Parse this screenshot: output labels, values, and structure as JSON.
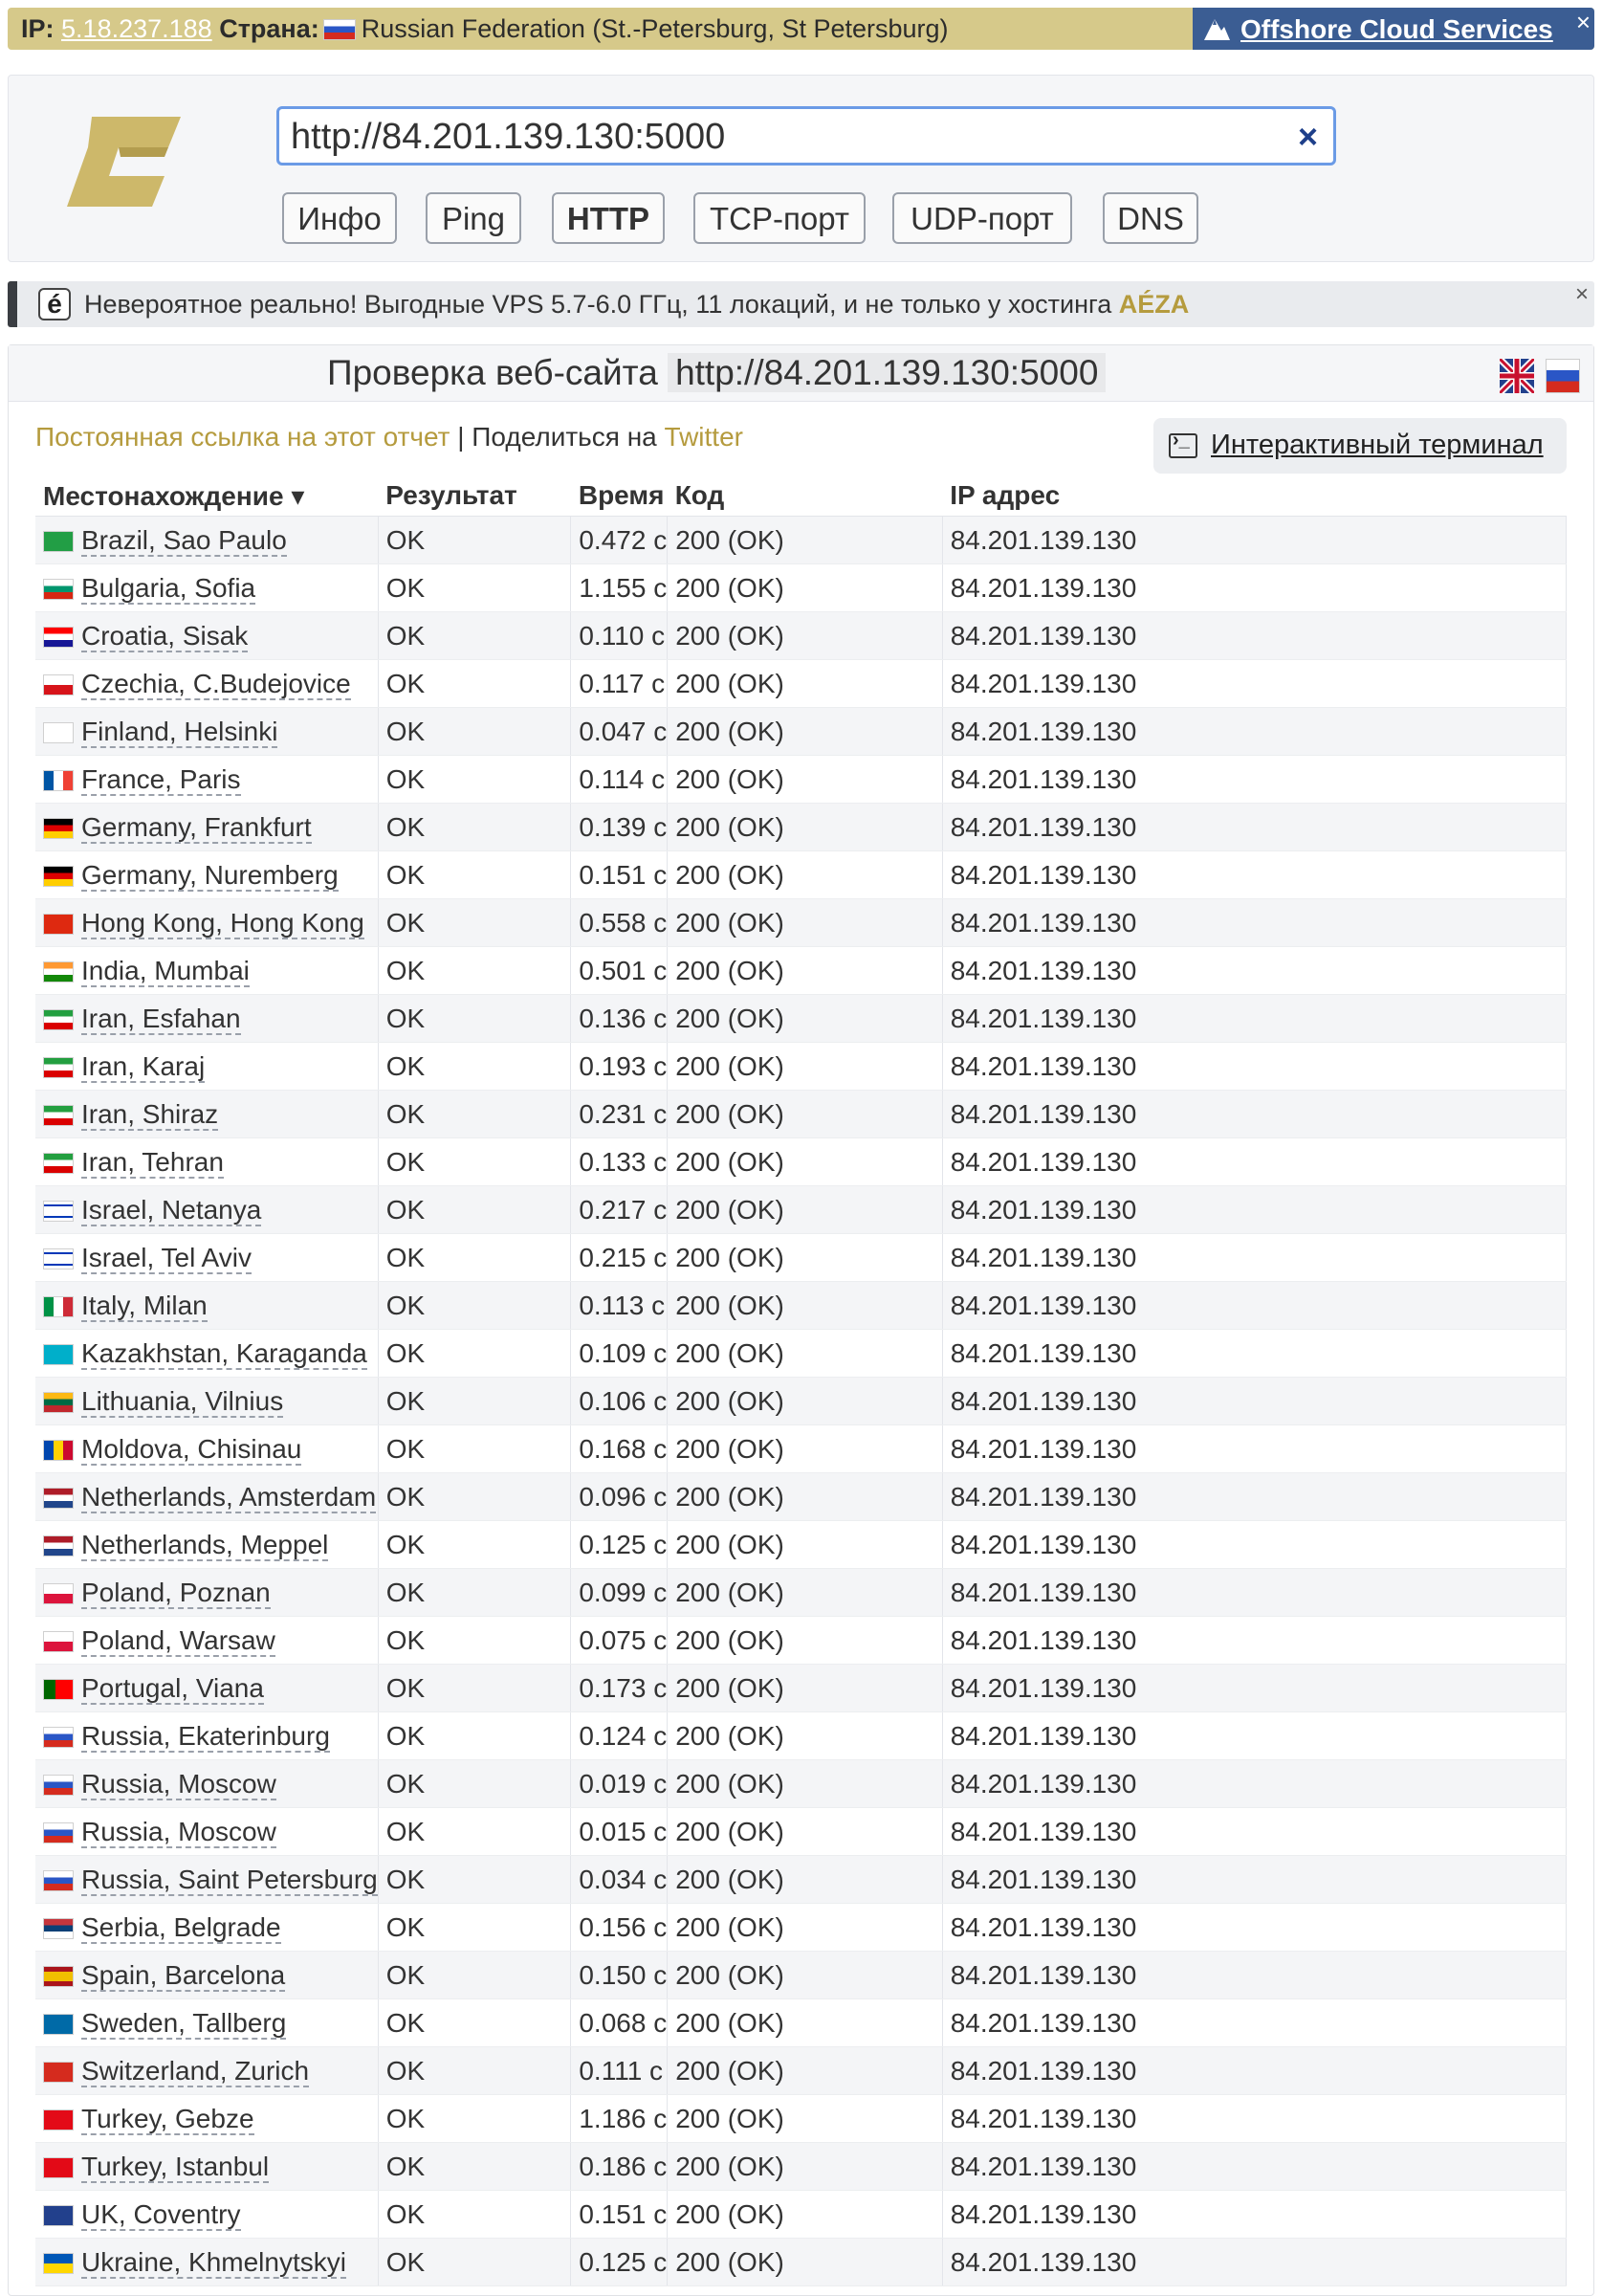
{
  "ipbar": {
    "ip_label": "IP:",
    "ip": "5.18.237.188",
    "country_label": "Страна:",
    "country": "Russian Federation (St.-Petersburg, St Petersburg)",
    "promo": "Offshore Cloud Services",
    "close": "×"
  },
  "search": {
    "value": "http://84.201.139.130:5000",
    "clear": "×"
  },
  "tabs": [
    {
      "label": "Инфо"
    },
    {
      "label": "Ping"
    },
    {
      "label": "HTTP"
    },
    {
      "label": "TCP-порт"
    },
    {
      "label": "UDP-порт"
    },
    {
      "label": "DNS"
    }
  ],
  "ad": {
    "icon": "é",
    "text": "Невероятное реально! Выгодные VPS 5.7-6.0 ГГц, 11 локаций, и не только у хостинга",
    "brand": "AÉZA",
    "close": "×"
  },
  "report": {
    "title": "Проверка веб-сайта",
    "url": "http://84.201.139.130:5000",
    "permalink": "Постоянная ссылка на этот отчет",
    "separator": " | ",
    "share": "Поделиться на",
    "twitter": "Twitter",
    "terminal": "Интерактивный терминал"
  },
  "table": {
    "headers": [
      "Местонахождение ▾",
      "Результат",
      "Время",
      "Код",
      "IP адрес"
    ],
    "rows": [
      {
        "flag": "br",
        "loc": "Brazil, Sao Paulo",
        "res": "OK",
        "time": "0.472 с",
        "code": "200 (OK)",
        "ip": "84.201.139.130"
      },
      {
        "flag": "bg",
        "loc": "Bulgaria, Sofia",
        "res": "OK",
        "time": "1.155 с",
        "code": "200 (OK)",
        "ip": "84.201.139.130"
      },
      {
        "flag": "hr",
        "loc": "Croatia, Sisak",
        "res": "OK",
        "time": "0.110 с",
        "code": "200 (OK)",
        "ip": "84.201.139.130"
      },
      {
        "flag": "cz",
        "loc": "Czechia, C.Budejovice",
        "res": "OK",
        "time": "0.117 с",
        "code": "200 (OK)",
        "ip": "84.201.139.130"
      },
      {
        "flag": "fi",
        "loc": "Finland, Helsinki",
        "res": "OK",
        "time": "0.047 с",
        "code": "200 (OK)",
        "ip": "84.201.139.130"
      },
      {
        "flag": "fr",
        "loc": "France, Paris",
        "res": "OK",
        "time": "0.114 с",
        "code": "200 (OK)",
        "ip": "84.201.139.130"
      },
      {
        "flag": "de",
        "loc": "Germany, Frankfurt",
        "res": "OK",
        "time": "0.139 с",
        "code": "200 (OK)",
        "ip": "84.201.139.130"
      },
      {
        "flag": "de",
        "loc": "Germany, Nuremberg",
        "res": "OK",
        "time": "0.151 с",
        "code": "200 (OK)",
        "ip": "84.201.139.130"
      },
      {
        "flag": "hk",
        "loc": "Hong Kong, Hong Kong",
        "res": "OK",
        "time": "0.558 с",
        "code": "200 (OK)",
        "ip": "84.201.139.130"
      },
      {
        "flag": "in",
        "loc": "India, Mumbai",
        "res": "OK",
        "time": "0.501 с",
        "code": "200 (OK)",
        "ip": "84.201.139.130"
      },
      {
        "flag": "ir",
        "loc": "Iran, Esfahan",
        "res": "OK",
        "time": "0.136 с",
        "code": "200 (OK)",
        "ip": "84.201.139.130"
      },
      {
        "flag": "ir",
        "loc": "Iran, Karaj",
        "res": "OK",
        "time": "0.193 с",
        "code": "200 (OK)",
        "ip": "84.201.139.130"
      },
      {
        "flag": "ir",
        "loc": "Iran, Shiraz",
        "res": "OK",
        "time": "0.231 с",
        "code": "200 (OK)",
        "ip": "84.201.139.130"
      },
      {
        "flag": "ir",
        "loc": "Iran, Tehran",
        "res": "OK",
        "time": "0.133 с",
        "code": "200 (OK)",
        "ip": "84.201.139.130"
      },
      {
        "flag": "il",
        "loc": "Israel, Netanya",
        "res": "OK",
        "time": "0.217 с",
        "code": "200 (OK)",
        "ip": "84.201.139.130"
      },
      {
        "flag": "il",
        "loc": "Israel, Tel Aviv",
        "res": "OK",
        "time": "0.215 с",
        "code": "200 (OK)",
        "ip": "84.201.139.130"
      },
      {
        "flag": "it",
        "loc": "Italy, Milan",
        "res": "OK",
        "time": "0.113 с",
        "code": "200 (OK)",
        "ip": "84.201.139.130"
      },
      {
        "flag": "kz",
        "loc": "Kazakhstan, Karaganda",
        "res": "OK",
        "time": "0.109 с",
        "code": "200 (OK)",
        "ip": "84.201.139.130"
      },
      {
        "flag": "lt",
        "loc": "Lithuania, Vilnius",
        "res": "OK",
        "time": "0.106 с",
        "code": "200 (OK)",
        "ip": "84.201.139.130"
      },
      {
        "flag": "md",
        "loc": "Moldova, Chisinau",
        "res": "OK",
        "time": "0.168 с",
        "code": "200 (OK)",
        "ip": "84.201.139.130"
      },
      {
        "flag": "nl",
        "loc": "Netherlands, Amsterdam",
        "res": "OK",
        "time": "0.096 с",
        "code": "200 (OK)",
        "ip": "84.201.139.130"
      },
      {
        "flag": "nl",
        "loc": "Netherlands, Meppel",
        "res": "OK",
        "time": "0.125 с",
        "code": "200 (OK)",
        "ip": "84.201.139.130"
      },
      {
        "flag": "pl",
        "loc": "Poland, Poznan",
        "res": "OK",
        "time": "0.099 с",
        "code": "200 (OK)",
        "ip": "84.201.139.130"
      },
      {
        "flag": "pl",
        "loc": "Poland, Warsaw",
        "res": "OK",
        "time": "0.075 с",
        "code": "200 (OK)",
        "ip": "84.201.139.130"
      },
      {
        "flag": "pt",
        "loc": "Portugal, Viana",
        "res": "OK",
        "time": "0.173 с",
        "code": "200 (OK)",
        "ip": "84.201.139.130"
      },
      {
        "flag": "ru",
        "loc": "Russia, Ekaterinburg",
        "res": "OK",
        "time": "0.124 с",
        "code": "200 (OK)",
        "ip": "84.201.139.130"
      },
      {
        "flag": "ru",
        "loc": "Russia, Moscow",
        "res": "OK",
        "time": "0.019 с",
        "code": "200 (OK)",
        "ip": "84.201.139.130"
      },
      {
        "flag": "ru",
        "loc": "Russia, Moscow",
        "res": "OK",
        "time": "0.015 с",
        "code": "200 (OK)",
        "ip": "84.201.139.130"
      },
      {
        "flag": "ru",
        "loc": "Russia, Saint Petersburg",
        "res": "OK",
        "time": "0.034 с",
        "code": "200 (OK)",
        "ip": "84.201.139.130"
      },
      {
        "flag": "rs",
        "loc": "Serbia, Belgrade",
        "res": "OK",
        "time": "0.156 с",
        "code": "200 (OK)",
        "ip": "84.201.139.130"
      },
      {
        "flag": "es",
        "loc": "Spain, Barcelona",
        "res": "OK",
        "time": "0.150 с",
        "code": "200 (OK)",
        "ip": "84.201.139.130"
      },
      {
        "flag": "se",
        "loc": "Sweden, Tallberg",
        "res": "OK",
        "time": "0.068 с",
        "code": "200 (OK)",
        "ip": "84.201.139.130"
      },
      {
        "flag": "ch",
        "loc": "Switzerland, Zurich",
        "res": "OK",
        "time": "0.111 с",
        "code": "200 (OK)",
        "ip": "84.201.139.130"
      },
      {
        "flag": "tr",
        "loc": "Turkey, Gebze",
        "res": "OK",
        "time": "1.186 с",
        "code": "200 (OK)",
        "ip": "84.201.139.130"
      },
      {
        "flag": "tr",
        "loc": "Turkey, Istanbul",
        "res": "OK",
        "time": "0.186 с",
        "code": "200 (OK)",
        "ip": "84.201.139.130"
      },
      {
        "flag": "gb",
        "loc": "UK, Coventry",
        "res": "OK",
        "time": "0.151 с",
        "code": "200 (OK)",
        "ip": "84.201.139.130"
      },
      {
        "flag": "ua",
        "loc": "Ukraine, Khmelnytskyi",
        "res": "OK",
        "time": "0.125 с",
        "code": "200 (OK)",
        "ip": "84.201.139.130"
      }
    ]
  },
  "colors": {
    "accent_gold": "#b59b3e",
    "ipbar_bg": "#d6c98a",
    "promo_bg": "#3b5d93",
    "input_border": "#6b9be6"
  }
}
